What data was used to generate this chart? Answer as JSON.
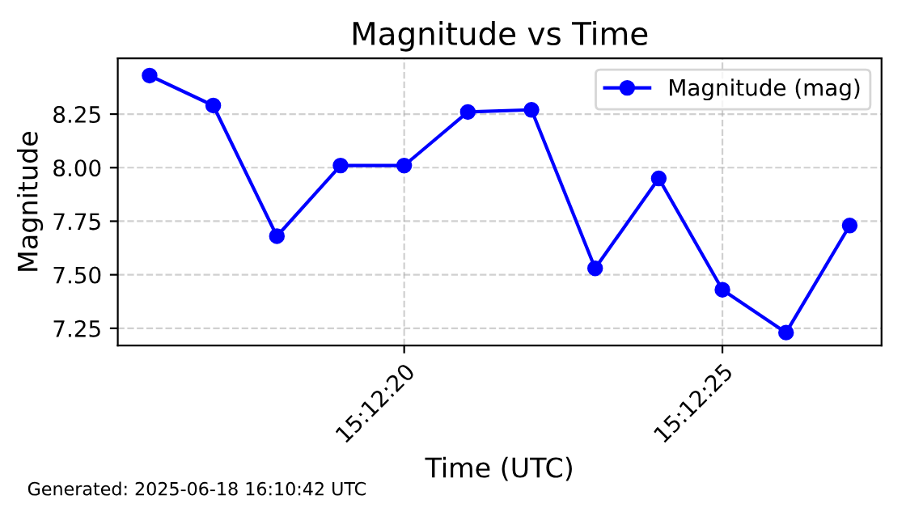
{
  "chart_data": {
    "type": "line",
    "title": "Magnitude vs Time",
    "xlabel": "Time (UTC)",
    "ylabel": "Magnitude",
    "x": [
      "2025-06-18T15:12:16",
      "2025-06-18T15:12:17",
      "2025-06-18T15:12:18",
      "2025-06-18T15:12:19",
      "2025-06-18T15:12:20",
      "2025-06-18T15:12:21",
      "2025-06-18T15:12:22",
      "2025-06-18T15:12:23",
      "2025-06-18T15:12:24",
      "2025-06-18T15:12:25",
      "2025-06-18T15:12:26",
      "2025-06-18T15:12:27"
    ],
    "series": [
      {
        "name": "Magnitude (mag)",
        "color": "#0000ff",
        "values": [
          8.43,
          8.29,
          7.68,
          8.01,
          8.01,
          8.26,
          8.27,
          7.53,
          7.95,
          7.43,
          7.23,
          7.73
        ]
      }
    ],
    "xlim": [
      "2025-06-18T15:12:15.5",
      "2025-06-18T15:12:27.5"
    ],
    "xticks": [
      {
        "value": "2025-06-18T15:12:20",
        "label": "15:12:20"
      },
      {
        "value": "2025-06-18T15:12:25",
        "label": "15:12:25"
      }
    ],
    "ylim": [
      7.17,
      8.51
    ],
    "yticks": [
      7.25,
      {
        "value": 7.5,
        "label": "7.50"
      },
      7.75,
      {
        "value": 8.0,
        "label": "8.00"
      },
      8.25
    ],
    "grid": true,
    "legend": "top right",
    "marker": "circle",
    "line_style": "solid",
    "annotations": [
      "Generated: 2025-06-18 16:10:42 UTC"
    ]
  }
}
